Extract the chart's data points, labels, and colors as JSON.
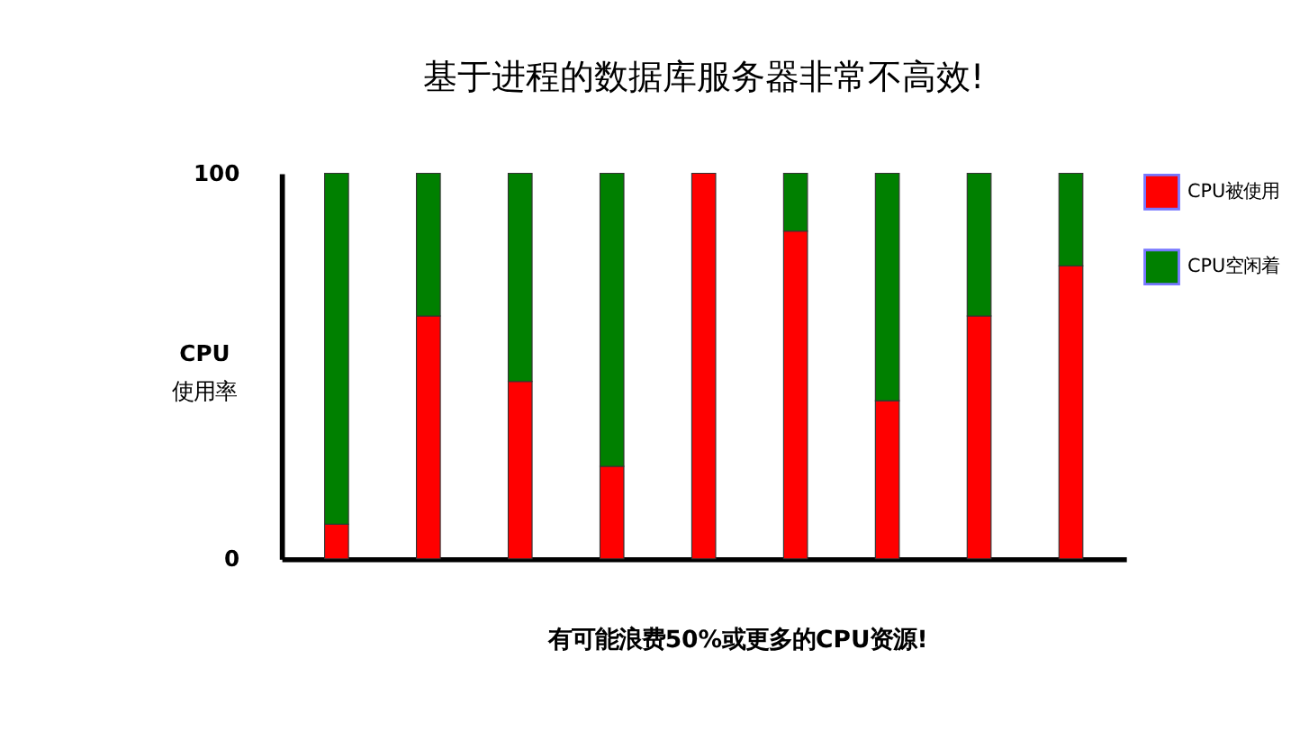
{
  "chart_data": {
    "type": "bar",
    "stacked": true,
    "title": "基于进程的数据库服务器非常不高效!",
    "ylabel": "CPU\n使用率",
    "annotations": [
      "有可能浪费50%或更多的CPU资源!"
    ],
    "categories": [
      null,
      null,
      null,
      null,
      null,
      null,
      null,
      null,
      null
    ],
    "series": [
      {
        "name": "CPU被使用",
        "color": "#ff0000",
        "values": [
          9,
          63,
          46,
          24,
          100,
          85,
          41,
          63,
          76
        ]
      },
      {
        "name": "CPU空闲着",
        "color": "#008000",
        "values": [
          91,
          37,
          54,
          76,
          0,
          15,
          59,
          37,
          24
        ]
      }
    ],
    "ylim": [
      0,
      100
    ],
    "yticks": [
      0,
      100
    ],
    "grid": false,
    "legend": "right"
  }
}
